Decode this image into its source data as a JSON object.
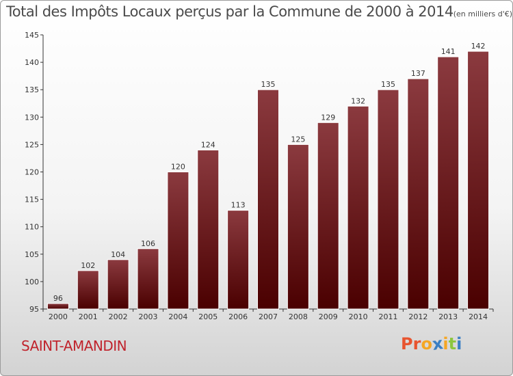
{
  "header": {
    "title": "Total des Impôts Locaux perçus par la Commune de 2000 à 2014",
    "unit": "(en milliers d'€)"
  },
  "footer": {
    "commune": "SAINT-AMANDIN",
    "logo": [
      "P",
      "r",
      "o",
      "x",
      "i",
      "t",
      "i"
    ],
    "logo_colors": [
      "#e8542f",
      "#e8542f",
      "#f5a623",
      "#3a7fc4",
      "#f5a623",
      "#8cc63f",
      "#3a7fc4"
    ]
  },
  "chart_data": {
    "type": "bar",
    "title": "Total des Impôts Locaux perçus par la Commune de 2000 à 2014",
    "xlabel": "",
    "ylabel": "",
    "categories": [
      "2000",
      "2001",
      "2002",
      "2003",
      "2004",
      "2005",
      "2006",
      "2007",
      "2008",
      "2009",
      "2010",
      "2011",
      "2012",
      "2013",
      "2014"
    ],
    "values": [
      96,
      102,
      104,
      106,
      120,
      124,
      113,
      135,
      125,
      129,
      132,
      135,
      137,
      141,
      142
    ],
    "ylim": [
      95,
      145
    ],
    "yticks": [
      95,
      100,
      105,
      110,
      115,
      120,
      125,
      130,
      135,
      140,
      145
    ],
    "bar_color_top": "#8b3a3f",
    "bar_color_bottom": "#4a0000",
    "grid": false,
    "legend": "none"
  }
}
